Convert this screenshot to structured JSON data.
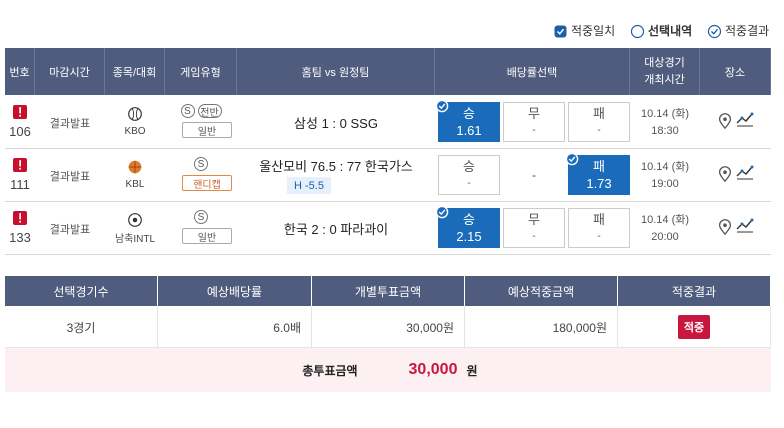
{
  "legend": [
    "적중일치",
    "선택내역",
    "적중결과"
  ],
  "table": {
    "headers": [
      "번호",
      "마감시간",
      "종목/대회",
      "게임유형",
      "홈팀 vs 원정팀",
      "배당률선택",
      [
        "대상경기",
        "개최시간"
      ],
      "장소"
    ],
    "rows": [
      {
        "number": "106",
        "close": "결과발표",
        "league": "KBO",
        "badges": [
          "S",
          "전반"
        ],
        "type": "일반",
        "match": "삼성 1 : 0 SSG",
        "odds": [
          {
            "label": "승",
            "value": "1.61",
            "selected": true
          },
          {
            "label": "무",
            "value": "-"
          },
          {
            "label": "패",
            "value": "-"
          }
        ],
        "date": "10.14 (화)",
        "time": "18:30"
      },
      {
        "number": "111",
        "close": "결과발표",
        "league": "KBL",
        "badges": [
          "S"
        ],
        "type": "핸디캡",
        "match": "울산모비 76.5 : 77 한국가스",
        "handicap": "H -5.5",
        "odds": [
          {
            "label": "승",
            "value": "-"
          },
          {
            "value": "-"
          },
          {
            "label": "패",
            "value": "1.73",
            "selected": true
          }
        ],
        "date": "10.14 (화)",
        "time": "19:00"
      },
      {
        "number": "133",
        "close": "결과발표",
        "league": "남축INTL",
        "badges": [
          "S"
        ],
        "type": "일반",
        "match": "한국 2 : 0 파라과이",
        "odds": [
          {
            "label": "승",
            "value": "2.15",
            "selected": true
          },
          {
            "label": "무",
            "value": "-"
          },
          {
            "label": "패",
            "value": "-"
          }
        ],
        "date": "10.14 (화)",
        "time": "20:00"
      }
    ]
  },
  "summary": {
    "headers": [
      "선택경기수",
      "예상배당률",
      "개별투표금액",
      "예상적중금액",
      "적중결과"
    ],
    "values": [
      "3경기",
      "6.0배",
      "30,000원",
      "180,000원",
      "적중"
    ],
    "total": {
      "label": "총투표금액",
      "amount": "30,000",
      "unit": "원"
    }
  }
}
